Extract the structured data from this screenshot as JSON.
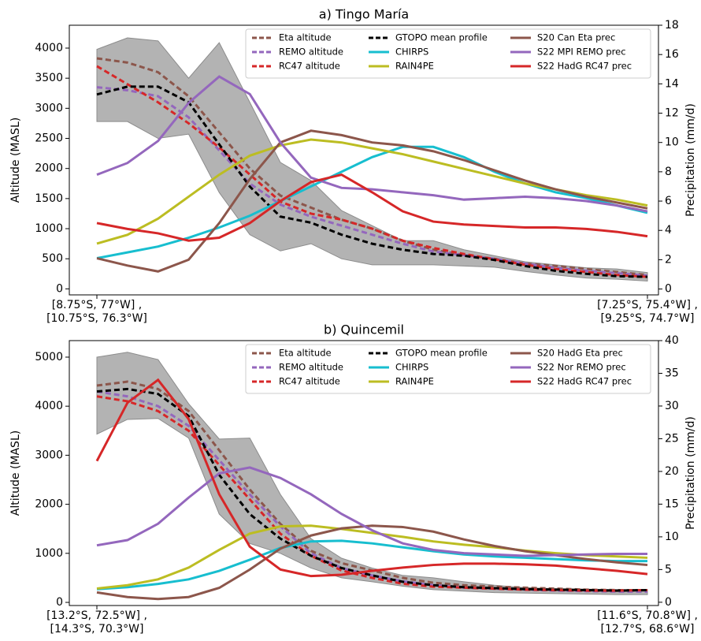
{
  "chart_data": [
    {
      "type": "line",
      "title": "a) Tingo María",
      "ylabel": "Altitude (MASL)",
      "y2label": "Precipitation (mm/d)",
      "categories": [
        "[8.75°S, 77°W] ,\n[10.75°S, 76.3°W]",
        null,
        null,
        null,
        null,
        null,
        null,
        null,
        null,
        null,
        null,
        null,
        null,
        null,
        null,
        null,
        null,
        null,
        "[7.25°S, 75.4°W] ,\n[9.25°S, 74.7°W]"
      ],
      "ylim": [
        -100,
        4380
      ],
      "yticks": [
        0,
        500,
        1000,
        1500,
        2000,
        2500,
        3000,
        3500,
        4000
      ],
      "y2lim": [
        -0.4,
        18
      ],
      "y2ticks": [
        0,
        2,
        4,
        6,
        8,
        10,
        12,
        14,
        16,
        18
      ],
      "legend": "upper right",
      "band": {
        "color": "#b3b3b3",
        "upper": [
          3980,
          4170,
          4120,
          3500,
          4090,
          3100,
          2100,
          1800,
          1300,
          1050,
          800,
          800,
          650,
          550,
          450,
          400,
          350,
          330,
          270
        ],
        "lower": [
          2780,
          2780,
          2500,
          2570,
          1600,
          900,
          630,
          750,
          500,
          400,
          400,
          400,
          380,
          360,
          290,
          230,
          180,
          160,
          130
        ]
      },
      "series": [
        {
          "name": "Eta altitude",
          "color": "#8c564b",
          "linestyle": "dashed",
          "axis": "y",
          "values": [
            3830,
            3760,
            3600,
            3200,
            2600,
            2000,
            1550,
            1350,
            1150,
            1000,
            800,
            650,
            560,
            500,
            420,
            380,
            330,
            280,
            230
          ]
        },
        {
          "name": "REMO altitude",
          "color": "#9467bd",
          "linestyle": "dashed",
          "axis": "y",
          "values": [
            3350,
            3300,
            3200,
            2850,
            2300,
            1750,
            1400,
            1200,
            1050,
            900,
            750,
            620,
            560,
            500,
            420,
            350,
            300,
            260,
            220
          ]
        },
        {
          "name": "RC47 altitude",
          "color": "#d62728",
          "linestyle": "dashed",
          "axis": "y",
          "values": [
            3700,
            3400,
            3100,
            2750,
            2350,
            1900,
            1450,
            1250,
            1150,
            1000,
            800,
            680,
            580,
            490,
            400,
            330,
            280,
            230,
            200
          ]
        },
        {
          "name": "GTOPO mean profile",
          "color": "#000000",
          "linestyle": "dashed",
          "axis": "y",
          "values": [
            3230,
            3360,
            3360,
            3100,
            2400,
            1700,
            1200,
            1100,
            900,
            750,
            650,
            580,
            550,
            480,
            380,
            300,
            250,
            210,
            200
          ]
        },
        {
          "name": "CHIRPS",
          "color": "#17becf",
          "linestyle": "solid",
          "axis": "y2",
          "values": [
            2.1,
            2.5,
            2.9,
            3.5,
            4.2,
            5.0,
            6.0,
            7.0,
            8.0,
            9.0,
            9.7,
            9.7,
            9.0,
            8.0,
            7.2,
            6.6,
            6.2,
            5.7,
            5.2
          ]
        },
        {
          "name": "RAIN4PE",
          "color": "#bcbd22",
          "linestyle": "solid",
          "axis": "y2",
          "values": [
            3.1,
            3.7,
            4.8,
            6.3,
            7.8,
            9.1,
            9.8,
            10.2,
            10.0,
            9.6,
            9.2,
            8.7,
            8.2,
            7.7,
            7.2,
            6.8,
            6.4,
            6.1,
            5.7
          ]
        },
        {
          "name": "S20 Can Eta prec",
          "color": "#8c564b",
          "linestyle": "solid",
          "axis": "y2",
          "values": [
            2.1,
            1.6,
            1.2,
            2.0,
            4.5,
            7.5,
            10.0,
            10.8,
            10.5,
            10.0,
            9.8,
            9.4,
            8.8,
            8.1,
            7.4,
            6.8,
            6.3,
            5.9,
            5.5
          ]
        },
        {
          "name": "S22 MPI REMO prec",
          "color": "#9467bd",
          "linestyle": "solid",
          "axis": "y2",
          "values": [
            7.8,
            8.6,
            10.1,
            12.7,
            14.5,
            13.3,
            10.0,
            7.6,
            6.9,
            6.8,
            6.6,
            6.4,
            6.1,
            6.2,
            6.3,
            6.2,
            6.0,
            5.7,
            5.3
          ]
        },
        {
          "name": "S22 HadG RC47 prec",
          "color": "#d62728",
          "linestyle": "solid",
          "axis": "y2",
          "values": [
            4.5,
            4.1,
            3.8,
            3.3,
            3.5,
            4.5,
            6.0,
            7.3,
            7.8,
            6.6,
            5.3,
            4.6,
            4.4,
            4.3,
            4.2,
            4.2,
            4.1,
            3.9,
            3.6
          ]
        }
      ]
    },
    {
      "type": "line",
      "title": "b) Quincemil",
      "ylabel": "Altitude (MASL)",
      "y2label": "Precipitation (mm/d)",
      "categories": [
        "[13.2°S, 72.5°W] ,\n[14.3°S, 70.3°W]",
        null,
        null,
        null,
        null,
        null,
        null,
        null,
        null,
        null,
        null,
        null,
        null,
        null,
        null,
        null,
        null,
        null,
        "[11.6°S, 70.8°W] ,\n[12.7°S, 68.6°W]"
      ],
      "ylim": [
        -64,
        5337
      ],
      "yticks": [
        0,
        1000,
        2000,
        3000,
        4000,
        5000
      ],
      "y2lim": [
        -0.5,
        40
      ],
      "y2ticks": [
        0,
        5,
        10,
        15,
        20,
        25,
        30,
        35,
        40
      ],
      "legend": "upper right",
      "band": {
        "color": "#b3b3b3",
        "upper": [
          5000,
          5100,
          4950,
          4050,
          3330,
          3350,
          2200,
          1300,
          900,
          700,
          550,
          500,
          420,
          350,
          300,
          280,
          270,
          260,
          260
        ],
        "lower": [
          3430,
          3730,
          3750,
          3350,
          1800,
          1200,
          1000,
          700,
          500,
          420,
          330,
          260,
          230,
          200,
          190,
          180,
          170,
          160,
          160
        ]
      },
      "series": [
        {
          "name": "Eta altitude",
          "color": "#8c564b",
          "linestyle": "dashed",
          "axis": "y",
          "values": [
            4420,
            4500,
            4350,
            3900,
            3100,
            2300,
            1600,
            1050,
            800,
            650,
            500,
            400,
            350,
            320,
            300,
            280,
            260,
            250,
            250
          ]
        },
        {
          "name": "REMO altitude",
          "color": "#9467bd",
          "linestyle": "dashed",
          "axis": "y",
          "values": [
            4300,
            4200,
            4000,
            3600,
            2900,
            2200,
            1550,
            1000,
            700,
            550,
            430,
            350,
            300,
            280,
            260,
            240,
            230,
            220,
            220
          ]
        },
        {
          "name": "RC47 altitude",
          "color": "#d62728",
          "linestyle": "dashed",
          "axis": "y",
          "values": [
            4200,
            4100,
            3900,
            3500,
            2800,
            2100,
            1400,
            950,
            650,
            500,
            380,
            320,
            300,
            280,
            260,
            250,
            240,
            240,
            250
          ]
        },
        {
          "name": "GTOPO mean profile",
          "color": "#000000",
          "linestyle": "dashed",
          "axis": "y",
          "values": [
            4300,
            4350,
            4250,
            3800,
            2600,
            1800,
            1300,
            950,
            700,
            550,
            420,
            350,
            310,
            290,
            270,
            260,
            250,
            240,
            250
          ]
        },
        {
          "name": "CHIRPS",
          "color": "#17becf",
          "linestyle": "solid",
          "axis": "y2",
          "values": [
            2.0,
            2.3,
            2.8,
            3.5,
            4.8,
            6.5,
            8.3,
            9.3,
            9.4,
            9.0,
            8.4,
            7.8,
            7.3,
            7.0,
            6.8,
            6.6,
            6.4,
            6.3,
            6.3
          ]
        },
        {
          "name": "RAIN4PE",
          "color": "#bcbd22",
          "linestyle": "solid",
          "axis": "y2",
          "values": [
            2.1,
            2.6,
            3.5,
            5.3,
            8.0,
            10.5,
            11.6,
            11.7,
            11.2,
            10.6,
            10.0,
            9.3,
            8.8,
            8.4,
            7.9,
            7.5,
            7.2,
            7.0,
            6.8
          ]
        },
        {
          "name": "S20 HadG Eta prec",
          "color": "#8c564b",
          "linestyle": "solid",
          "axis": "y2",
          "values": [
            1.5,
            0.8,
            0.5,
            0.8,
            2.2,
            5.0,
            8.2,
            10.2,
            11.3,
            11.7,
            11.5,
            10.8,
            9.6,
            8.6,
            7.8,
            7.2,
            6.6,
            6.1,
            5.7
          ]
        },
        {
          "name": "S22 Nor REMO prec",
          "color": "#9467bd",
          "linestyle": "solid",
          "axis": "y2",
          "values": [
            8.7,
            9.5,
            12.0,
            16.0,
            19.7,
            20.6,
            19.0,
            16.5,
            13.5,
            11.0,
            9.0,
            8.0,
            7.5,
            7.3,
            7.1,
            7.2,
            7.3,
            7.4,
            7.4
          ]
        },
        {
          "name": "S22 HadG RC47 prec",
          "color": "#d62728",
          "linestyle": "solid",
          "axis": "y2",
          "values": [
            21.6,
            30.5,
            34.0,
            28.0,
            16.5,
            8.5,
            5.0,
            4.0,
            4.2,
            4.8,
            5.3,
            5.7,
            5.9,
            5.9,
            5.8,
            5.6,
            5.2,
            4.8,
            4.3
          ]
        }
      ]
    }
  ]
}
